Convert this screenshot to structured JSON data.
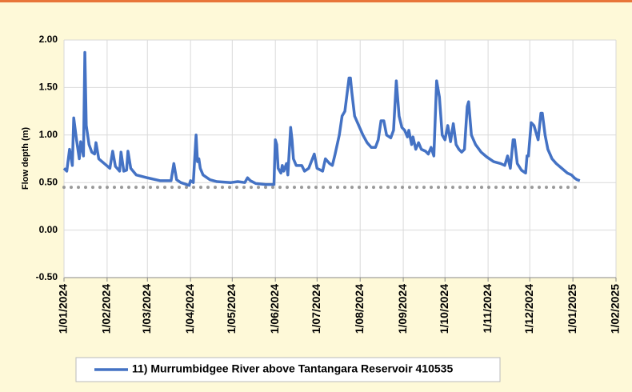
{
  "chart_data": {
    "type": "line",
    "ylabel": "Flow depth (m)",
    "x": [
      "1/01/2024",
      "3/01/2024",
      "5/01/2024",
      "7/01/2024",
      "8/01/2024",
      "10/01/2024",
      "12/01/2024",
      "13/01/2024",
      "15/01/2024",
      "16/01/2024",
      "17/01/2024",
      "19/01/2024",
      "21/01/2024",
      "23/01/2024",
      "24/01/2024",
      "26/01/2024",
      "30/01/2024",
      "3/02/2024",
      "5/02/2024",
      "7/02/2024",
      "10/02/2024",
      "11/02/2024",
      "13/02/2024",
      "15/02/2024",
      "16/02/2024",
      "18/02/2024",
      "22/02/2024",
      "1/03/2024",
      "10/03/2024",
      "18/03/2024",
      "20/03/2024",
      "22/03/2024",
      "25/03/2024",
      "31/03/2024",
      "1/04/2024",
      "3/04/2024",
      "5/04/2024",
      "6/04/2024",
      "7/04/2024",
      "8/04/2024",
      "10/04/2024",
      "15/04/2024",
      "20/04/2024",
      "30/04/2024",
      "5/05/2024",
      "10/05/2024",
      "12/05/2024",
      "14/05/2024",
      "18/05/2024",
      "25/05/2024",
      "31/05/2024",
      "1/06/2024",
      "2/06/2024",
      "3/06/2024",
      "5/06/2024",
      "6/06/2024",
      "7/06/2024",
      "9/06/2024",
      "10/06/2024",
      "12/06/2024",
      "13/06/2024",
      "14/06/2024",
      "16/06/2024",
      "20/06/2024",
      "22/06/2024",
      "25/06/2024",
      "29/06/2024",
      "1/07/2024",
      "5/07/2024",
      "7/07/2024",
      "10/07/2024",
      "12/07/2024",
      "14/07/2024",
      "17/07/2024",
      "19/07/2024",
      "21/07/2024",
      "24/07/2024",
      "25/07/2024",
      "26/07/2024",
      "28/07/2024",
      "31/07/2024",
      "3/08/2024",
      "6/08/2024",
      "9/08/2024",
      "12/08/2024",
      "14/08/2024",
      "16/08/2024",
      "18/08/2024",
      "20/08/2024",
      "23/08/2024",
      "25/08/2024",
      "27/08/2024",
      "29/08/2024",
      "31/08/2024",
      "2/09/2024",
      "4/09/2024",
      "5/09/2024",
      "7/09/2024",
      "8/09/2024",
      "10/09/2024",
      "12/09/2024",
      "14/09/2024",
      "17/09/2024",
      "19/09/2024",
      "21/09/2024",
      "23/09/2024",
      "25/09/2024",
      "27/09/2024",
      "29/09/2024",
      "1/10/2024",
      "3/10/2024",
      "5/10/2024",
      "7/10/2024",
      "9/10/2024",
      "11/10/2024",
      "13/10/2024",
      "15/10/2024",
      "17/10/2024",
      "18/10/2024",
      "20/10/2024",
      "23/10/2024",
      "27/10/2024",
      "31/10/2024",
      "5/11/2024",
      "10/11/2024",
      "13/11/2024",
      "15/11/2024",
      "17/11/2024",
      "19/11/2024",
      "20/11/2024",
      "22/11/2024",
      "25/11/2024",
      "28/11/2024",
      "29/11/2024",
      "30/11/2024",
      "2/12/2024",
      "4/12/2024",
      "6/12/2024",
      "7/12/2024",
      "9/12/2024",
      "10/12/2024",
      "12/12/2024",
      "14/12/2024",
      "17/12/2024",
      "20/12/2024",
      "24/12/2024",
      "28/12/2024",
      "31/12/2024",
      "2/01/2025",
      "4/01/2025",
      "6/01/2025"
    ],
    "series": [
      {
        "name": "11) Murrumbidgee River above Tantangara Reservoir 410535",
        "color": "#4472c4",
        "values": [
          0.65,
          0.62,
          0.85,
          0.68,
          1.18,
          0.95,
          0.75,
          0.93,
          0.78,
          1.87,
          1.1,
          0.9,
          0.82,
          0.8,
          0.92,
          0.75,
          0.7,
          0.65,
          0.83,
          0.67,
          0.62,
          0.82,
          0.62,
          0.63,
          0.83,
          0.65,
          0.58,
          0.55,
          0.52,
          0.52,
          0.7,
          0.53,
          0.5,
          0.47,
          0.52,
          0.5,
          1.0,
          0.72,
          0.75,
          0.65,
          0.58,
          0.53,
          0.51,
          0.5,
          0.51,
          0.5,
          0.55,
          0.52,
          0.49,
          0.48,
          0.48,
          0.95,
          0.9,
          0.65,
          0.6,
          0.68,
          0.62,
          0.7,
          0.58,
          1.08,
          0.95,
          0.75,
          0.68,
          0.68,
          0.62,
          0.65,
          0.8,
          0.65,
          0.62,
          0.75,
          0.7,
          0.68,
          0.8,
          1.0,
          1.2,
          1.25,
          1.6,
          1.6,
          1.45,
          1.2,
          1.1,
          1.0,
          0.92,
          0.87,
          0.87,
          0.95,
          1.15,
          1.15,
          1.0,
          0.97,
          1.05,
          1.57,
          1.2,
          1.08,
          1.05,
          0.98,
          1.05,
          0.9,
          0.98,
          0.85,
          0.92,
          0.85,
          0.83,
          0.8,
          0.87,
          0.78,
          1.57,
          1.4,
          1.0,
          0.95,
          1.1,
          0.93,
          1.12,
          0.9,
          0.85,
          0.82,
          0.85,
          1.3,
          1.35,
          1.0,
          0.9,
          0.82,
          0.77,
          0.72,
          0.7,
          0.68,
          0.78,
          0.65,
          0.95,
          0.95,
          0.7,
          0.63,
          0.6,
          0.78,
          0.78,
          1.13,
          1.1,
          1.0,
          0.95,
          1.23,
          1.23,
          1.0,
          0.85,
          0.75,
          0.7,
          0.65,
          0.6,
          0.58,
          0.55,
          0.53,
          0.52
        ]
      }
    ],
    "reference_line": {
      "value": 0.45,
      "color": "#999999"
    },
    "xlim": [
      "1/01/2024",
      "1/02/2025"
    ],
    "xticks": [
      "1/01/2024",
      "1/02/2024",
      "1/03/2024",
      "1/04/2024",
      "1/05/2024",
      "1/06/2024",
      "1/07/2024",
      "1/08/2024",
      "1/09/2024",
      "1/10/2024",
      "1/11/2024",
      "1/12/2024",
      "1/01/2025",
      "1/02/2025"
    ],
    "ylim": [
      -0.5,
      2
    ],
    "yticks": [
      {
        "value": -0.5,
        "label": "-0.50"
      },
      {
        "value": 0,
        "label": "0.00"
      },
      {
        "value": 0.5,
        "label": "0.50"
      },
      {
        "value": 1,
        "label": "1.00"
      },
      {
        "value": 1.5,
        "label": "1.50"
      },
      {
        "value": 2,
        "label": "2.00"
      }
    ],
    "grid": true
  }
}
